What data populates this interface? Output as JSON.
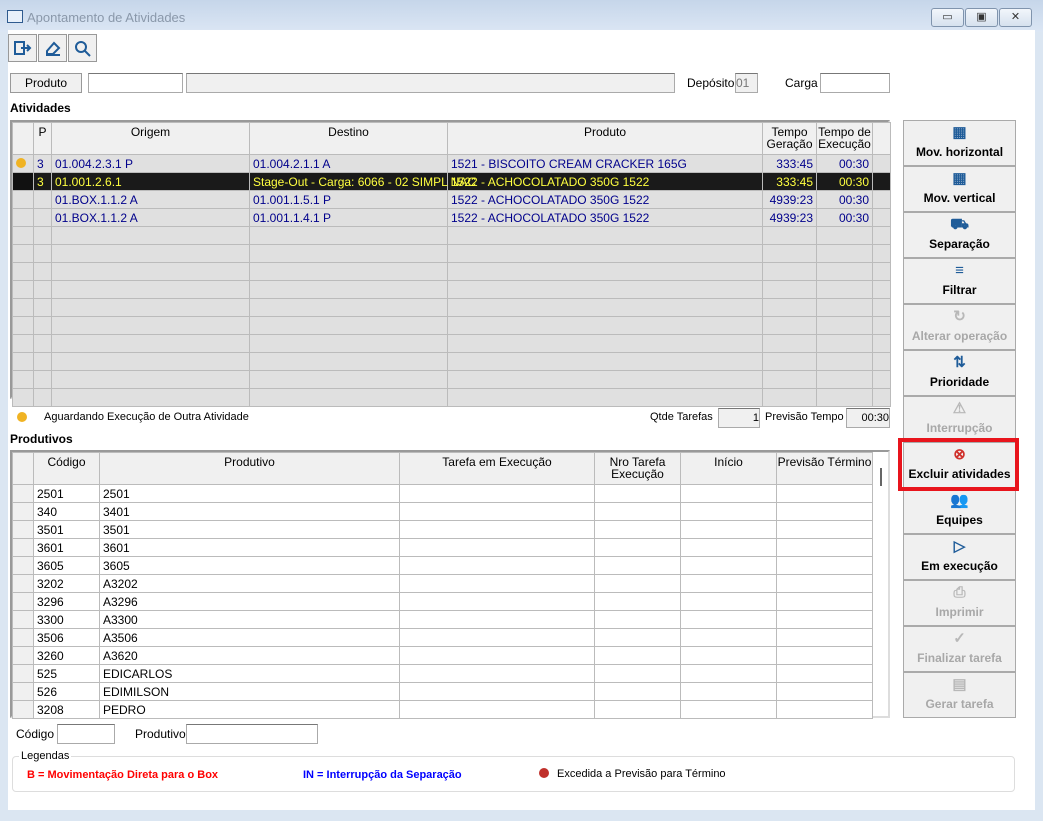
{
  "window": {
    "title": "Apontamento de Atividades",
    "minimize": "▭",
    "maximize": "▣",
    "close": "✕"
  },
  "toolbar": {
    "exit_icon": "exit-icon",
    "clear_icon": "eraser-icon",
    "search_icon": "search-icon"
  },
  "filters": {
    "produto_button": "Produto",
    "produto_code": "",
    "produto_desc": "",
    "deposito_label": "Depósito",
    "deposito_value": "01",
    "carga_label": "Carga",
    "carga_value": ""
  },
  "atividades": {
    "title": "Atividades",
    "columns": [
      "",
      "P",
      "Origem",
      "Destino",
      "Produto",
      "Tempo Geração",
      "Tempo de Execução",
      ""
    ],
    "rows": [
      {
        "status": "waiting",
        "p": "3",
        "origem": "01.004.2.3.1 P",
        "destino": "01.004.2.1.1 A",
        "produto": "1521 - BISCOITO CREAM CRACKER 165G",
        "tg": "333:45",
        "te": "00:30",
        "selected": false
      },
      {
        "status": "",
        "p": "3",
        "origem": "01.001.2.6.1",
        "destino": "Stage-Out - Carga: 6066 - 02 SIMPL NAC",
        "produto": "1522 - ACHOCOLATADO 350G 1522",
        "tg": "333:45",
        "te": "00:30",
        "selected": true
      },
      {
        "status": "",
        "p": "",
        "origem": "01.BOX.1.1.2 A",
        "destino": "01.001.1.5.1 P",
        "produto": "1522 - ACHOCOLATADO 350G 1522",
        "tg": "4939:23",
        "te": "00:30",
        "selected": false
      },
      {
        "status": "",
        "p": "",
        "origem": "01.BOX.1.1.2 A",
        "destino": "01.001.1.4.1 P",
        "produto": "1522 - ACHOCOLATADO 350G 1522",
        "tg": "4939:23",
        "te": "00:30",
        "selected": false
      }
    ]
  },
  "status": {
    "waiting_legend": "Aguardando Execução de Outra Atividade",
    "waiting_color": "#f0b323",
    "qtde_label": "Qtde Tarefas",
    "qtde_value": "1",
    "previsao_label": "Previsão Tempo",
    "previsao_value": "00:30"
  },
  "produtivos": {
    "title": "Produtivos",
    "columns": [
      "",
      "Código",
      "Produtivo",
      "Tarefa em Execução",
      "Nro Tarefa Execução",
      "Início",
      "Previsão Término"
    ],
    "rows": [
      [
        "2501",
        "2501"
      ],
      [
        "340",
        "3401"
      ],
      [
        "3501",
        "3501"
      ],
      [
        "3601",
        "3601"
      ],
      [
        "3605",
        "3605"
      ],
      [
        "3202",
        "A3202"
      ],
      [
        "3296",
        "A3296"
      ],
      [
        "3300",
        "A3300"
      ],
      [
        "3506",
        "A3506"
      ],
      [
        "3260",
        "A3620"
      ],
      [
        "525",
        "EDICARLOS"
      ],
      [
        "526",
        "EDIMILSON"
      ],
      [
        "3208",
        "PEDRO"
      ]
    ]
  },
  "bottom_filters": {
    "codigo_label": "Código",
    "codigo_value": "",
    "produtivo_label": "Produtivo",
    "produtivo_value": ""
  },
  "legendas": {
    "title": "Legendas",
    "b": "B = Movimentação Direta para o Box",
    "b_color": "#ff0000",
    "in": "IN = Interrupção da Separação",
    "in_color": "#0000ff",
    "excedida": "Excedida a Previsão para Término",
    "excedida_color": "#c0302b"
  },
  "actions": [
    {
      "label": "Mov. horizontal",
      "icon": "pallets-icon",
      "glyph": "▦",
      "enabled": true
    },
    {
      "label": "Mov. vertical",
      "icon": "pallets-icon",
      "glyph": "▦",
      "enabled": true
    },
    {
      "label": "Separação",
      "icon": "hand-truck-icon",
      "glyph": "⛟",
      "enabled": true
    },
    {
      "label": "Filtrar",
      "icon": "filter-icon",
      "glyph": "≡",
      "enabled": true
    },
    {
      "label": "Alterar operação",
      "icon": "refresh-icon",
      "glyph": "↻",
      "enabled": false
    },
    {
      "label": "Prioridade",
      "icon": "sort-arrows-icon",
      "glyph": "⇅",
      "enabled": true
    },
    {
      "label": "Interrupção",
      "icon": "warning-icon",
      "glyph": "⚠",
      "enabled": false
    },
    {
      "label": "Excluir atividades",
      "icon": "delete-circle-icon",
      "glyph": "⊗",
      "enabled": true,
      "highlighted": true
    },
    {
      "label": "Equipes",
      "icon": "team-icon",
      "glyph": "👥",
      "enabled": true
    },
    {
      "label": "Em execução",
      "icon": "play-icon",
      "glyph": "▷",
      "enabled": true
    },
    {
      "label": "Imprimir",
      "icon": "printer-icon",
      "glyph": "⎙",
      "enabled": false
    },
    {
      "label": "Finalizar tarefa",
      "icon": "check-circle-icon",
      "glyph": "✓",
      "enabled": false
    },
    {
      "label": "Gerar tarefa",
      "icon": "document-icon",
      "glyph": "▤",
      "enabled": false
    }
  ]
}
